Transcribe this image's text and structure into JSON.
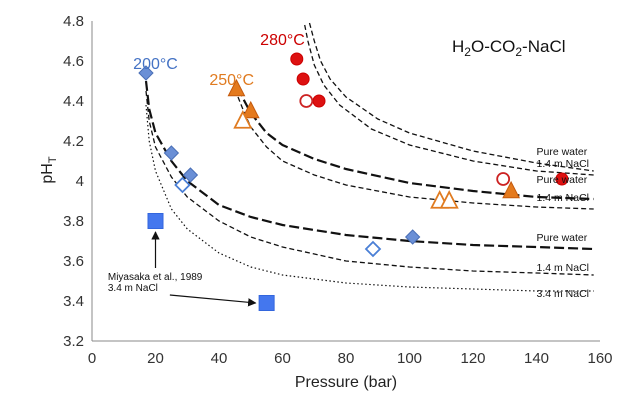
{
  "chart_data": {
    "type": "scatter",
    "title": "H2O-CO2-NaCl",
    "xlabel": "Pressure (bar)",
    "ylabel": "pH",
    "ylabel_sub": "T",
    "xlim": [
      0,
      160
    ],
    "ylim": [
      3.2,
      4.8
    ],
    "x_ticks": [
      0,
      20,
      40,
      60,
      80,
      100,
      120,
      140,
      160
    ],
    "y_ticks": [
      3.2,
      3.4,
      3.6,
      3.8,
      4.0,
      4.2,
      4.4,
      4.6,
      4.8
    ],
    "x_tick_labels": [
      "0",
      "20",
      "40",
      "60",
      "80",
      "100",
      "120",
      "140",
      "160"
    ],
    "y_tick_labels": [
      "3.2",
      "3.4",
      "3.6",
      "3.8",
      "4",
      "4.2",
      "4.4",
      "4.6",
      "4.8"
    ],
    "grid": false,
    "formula": {
      "p1": "H",
      "s1": "2",
      "p2": "O-CO",
      "s2": "2",
      "p3": "-NaCl"
    },
    "temperature_labels": [
      {
        "text": "200°C",
        "color": "#4472c4",
        "x": 20,
        "y": 4.56
      },
      {
        "text": "250°C",
        "color": "#e07b20",
        "x": 44,
        "y": 4.48
      },
      {
        "text": "280°C",
        "color": "#cc0000",
        "x": 60,
        "y": 4.68
      }
    ],
    "curves": [
      {
        "label": "Pure water",
        "temp": "280°C",
        "style": "dash",
        "x": [
          68.5,
          70,
          72,
          75,
          80,
          90,
          100,
          120,
          140,
          158
        ],
        "y": [
          4.79,
          4.7,
          4.6,
          4.51,
          4.42,
          4.31,
          4.24,
          4.15,
          4.09,
          4.05
        ]
      },
      {
        "label": "1.4 m NaCl",
        "temp": "280°C",
        "style": "dash",
        "x": [
          67,
          68,
          70,
          73,
          78,
          88,
          100,
          120,
          140,
          158
        ],
        "y": [
          4.78,
          4.7,
          4.58,
          4.48,
          4.38,
          4.26,
          4.18,
          4.1,
          4.05,
          4.03
        ]
      },
      {
        "label": "Pure water",
        "temp": "250°C",
        "style": "longdash",
        "x": [
          46,
          48,
          50,
          55,
          60,
          70,
          80,
          100,
          120,
          140,
          158
        ],
        "y": [
          4.47,
          4.4,
          4.34,
          4.24,
          4.18,
          4.11,
          4.06,
          3.99,
          3.95,
          3.92,
          3.91
        ]
      },
      {
        "label": "1.4 m NaCl",
        "temp": "250°C",
        "style": "dash",
        "x": [
          46,
          48,
          50,
          55,
          60,
          70,
          80,
          100,
          120,
          140,
          158
        ],
        "y": [
          4.42,
          4.34,
          4.27,
          4.17,
          4.1,
          4.03,
          3.98,
          3.92,
          3.89,
          3.87,
          3.86
        ]
      },
      {
        "label": "Pure water",
        "temp": "200°C",
        "style": "longdash",
        "x": [
          17,
          18,
          20,
          25,
          30,
          40,
          50,
          60,
          80,
          100,
          120,
          140,
          158
        ],
        "y": [
          4.5,
          4.36,
          4.24,
          4.1,
          4.0,
          3.88,
          3.82,
          3.78,
          3.73,
          3.7,
          3.68,
          3.67,
          3.66
        ]
      },
      {
        "label": "1.4 m NaCl",
        "temp": "200°C",
        "style": "dash",
        "x": [
          17,
          18,
          20,
          25,
          30,
          40,
          50,
          60,
          80,
          100,
          120,
          140,
          158
        ],
        "y": [
          4.45,
          4.3,
          4.17,
          4.02,
          3.92,
          3.8,
          3.72,
          3.67,
          3.6,
          3.57,
          3.55,
          3.54,
          3.53
        ]
      },
      {
        "label": "3.4 m NaCl",
        "temp": "200°C",
        "style": "dot",
        "x": [
          17,
          18,
          20,
          25,
          30,
          40,
          50,
          60,
          80,
          100,
          120,
          140,
          158
        ],
        "y": [
          4.38,
          4.2,
          4.05,
          3.86,
          3.76,
          3.64,
          3.57,
          3.53,
          3.49,
          3.47,
          3.46,
          3.45,
          3.45
        ]
      }
    ],
    "series": [
      {
        "temp": "200°C",
        "marker": "diamond",
        "filled": true,
        "color": "#6a8fd6",
        "edge": "#4a6fb6",
        "points": [
          [
            17,
            4.54
          ],
          [
            25,
            4.14
          ],
          [
            31,
            4.03
          ],
          [
            101,
            3.72
          ]
        ]
      },
      {
        "temp": "200°C",
        "marker": "diamond",
        "filled": false,
        "color": "#ffffff",
        "edge": "#4a7fd6",
        "points": [
          [
            28.5,
            3.98
          ],
          [
            88.5,
            3.66
          ]
        ]
      },
      {
        "temp": "250°C",
        "marker": "triangle",
        "filled": true,
        "color": "#e47a1e",
        "edge": "#c45a0e",
        "points": [
          [
            45.5,
            4.46
          ],
          [
            50,
            4.35
          ],
          [
            132,
            3.95
          ]
        ]
      },
      {
        "temp": "250°C",
        "marker": "triangle",
        "filled": false,
        "color": "#ffffff",
        "edge": "#e07b20",
        "points": [
          [
            47.5,
            4.3
          ],
          [
            109.5,
            3.9
          ],
          [
            112.5,
            3.9
          ]
        ]
      },
      {
        "temp": "280°C",
        "marker": "circle",
        "filled": true,
        "color": "#dd1111",
        "edge": "#cc0000",
        "points": [
          [
            64.5,
            4.61
          ],
          [
            66.5,
            4.51
          ],
          [
            71.5,
            4.4
          ],
          [
            148,
            4.01
          ]
        ]
      },
      {
        "temp": "280°C",
        "marker": "circle",
        "filled": false,
        "color": "#ffffff",
        "edge": "#cc2222",
        "points": [
          [
            67.5,
            4.4
          ],
          [
            129.5,
            4.01
          ]
        ]
      },
      {
        "name": "Miyasaka et al., 1989",
        "temp": "200°C",
        "marker": "square",
        "filled": true,
        "color": "#4477ee",
        "edge": "#3366dd",
        "points": [
          [
            20,
            3.8
          ],
          [
            55,
            3.39
          ]
        ]
      }
    ],
    "curve_labels": [
      {
        "text": "Pure water",
        "x": 140,
        "y": 4.13
      },
      {
        "text": "1.4 m NaCl",
        "x": 140,
        "y": 4.07
      },
      {
        "text": "Pure water",
        "x": 140,
        "y": 3.99
      },
      {
        "text": "1.4 m NaCl",
        "x": 140,
        "y": 3.9
      },
      {
        "text": "Pure water",
        "x": 140,
        "y": 3.7
      },
      {
        "text": "1.4 m NaCl",
        "x": 140,
        "y": 3.55
      },
      {
        "text": "3.4 m NaCl",
        "x": 140,
        "y": 3.42
      }
    ],
    "reference_annotation": {
      "line1": "Miyasaka et al., 1989",
      "line2": "3.4 m NaCl",
      "text_x": 5,
      "text_y1": 3.505,
      "text_y2": 3.45
    }
  }
}
